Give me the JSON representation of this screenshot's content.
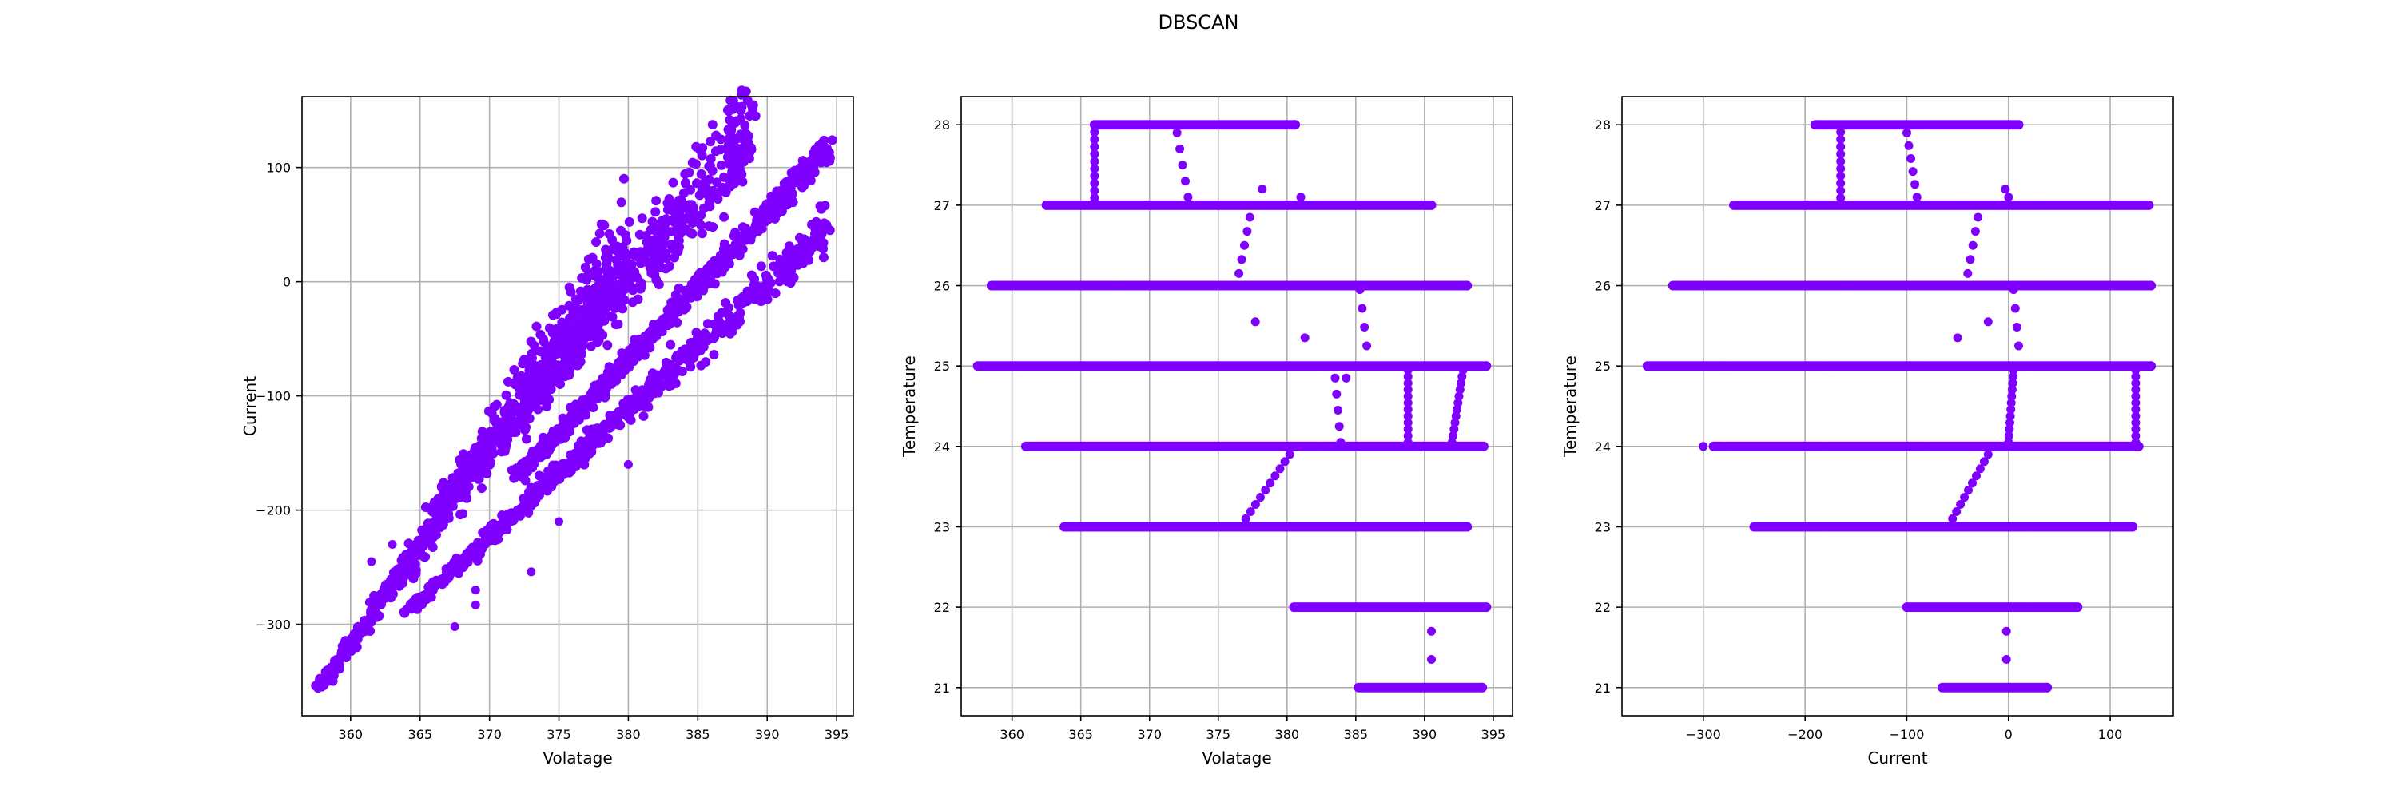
{
  "title": "DBSCAN",
  "marker_color": "#7f00ff",
  "charts": [
    {
      "type": "scatter",
      "xlabel": "Volatage",
      "ylabel": "Current",
      "xlim": [
        356.5,
        396.2
      ],
      "ylim": [
        -380,
        162
      ],
      "xticks": [
        360,
        365,
        370,
        375,
        380,
        385,
        390,
        395
      ],
      "yticks": [
        -300,
        -200,
        -100,
        0,
        100
      ],
      "grid": true,
      "bands": [
        {
          "x0": 357.8,
          "x1": 380.0,
          "y0": -355,
          "y1": 30,
          "w0": 6,
          "w1": 140
        },
        {
          "x0": 366.0,
          "x1": 389.0,
          "y0": -200,
          "y1": 138,
          "w0": 30,
          "w1": 140
        },
        {
          "x0": 372.0,
          "x1": 394.5,
          "y0": -170,
          "y1": 118,
          "w0": 20,
          "w1": 35
        },
        {
          "x0": 364.0,
          "x1": 394.5,
          "y0": -290,
          "y1": 50,
          "w0": 12,
          "w1": 60
        }
      ],
      "extra_points": [
        [
          367.5,
          -302
        ],
        [
          369.0,
          -270
        ],
        [
          369.0,
          -283
        ],
        [
          373.0,
          -254
        ],
        [
          380.0,
          -160
        ],
        [
          375.0,
          -210
        ],
        [
          363.0,
          -230
        ],
        [
          361.5,
          -245
        ]
      ]
    },
    {
      "type": "scatter",
      "xlabel": "Volatage",
      "ylabel": "Temperature",
      "xlim": [
        356.3,
        396.4
      ],
      "ylim": [
        20.65,
        28.35
      ],
      "xticks": [
        360,
        365,
        370,
        375,
        380,
        385,
        390,
        395
      ],
      "yticks": [
        21,
        22,
        23,
        24,
        25,
        26,
        27,
        28
      ],
      "grid": true,
      "levels": [
        {
          "y": 28,
          "x0": 366.0,
          "x1": 380.6
        },
        {
          "y": 27,
          "x0": 362.5,
          "x1": 390.5
        },
        {
          "y": 26,
          "x0": 358.5,
          "x1": 393.1
        },
        {
          "y": 25,
          "x0": 357.5,
          "x1": 394.5
        },
        {
          "y": 24,
          "x0": 361.0,
          "x1": 394.3
        },
        {
          "y": 23,
          "x0": 363.8,
          "x1": 393.1
        },
        {
          "y": 22,
          "x0": 380.5,
          "x1": 394.5
        },
        {
          "y": 21,
          "x0": 385.2,
          "x1": 394.2
        }
      ],
      "transitions": [
        {
          "x0": 366.0,
          "y0": 28.0,
          "x1": 366.0,
          "y1": 27.0,
          "n": 12
        },
        {
          "x0": 372.0,
          "y0": 27.9,
          "x1": 372.8,
          "y1": 27.1,
          "n": 5
        },
        {
          "x0": 376.5,
          "y0": 26.15,
          "x1": 377.3,
          "y1": 26.85,
          "n": 5
        },
        {
          "x0": 377.0,
          "y0": 23.1,
          "x1": 380.2,
          "y1": 23.9,
          "n": 10
        },
        {
          "x0": 383.5,
          "y0": 24.85,
          "x1": 383.9,
          "y1": 24.05,
          "n": 5
        },
        {
          "x0": 385.3,
          "y0": 25.95,
          "x1": 385.8,
          "y1": 25.25,
          "n": 4
        },
        {
          "x0": 388.8,
          "y0": 24.05,
          "x1": 388.8,
          "y1": 24.95,
          "n": 12
        },
        {
          "x0": 392.8,
          "y0": 24.95,
          "x1": 392.0,
          "y1": 24.05,
          "n": 12
        }
      ],
      "extra_points": [
        [
          378.2,
          27.2
        ],
        [
          381.0,
          27.1
        ],
        [
          377.7,
          25.55
        ],
        [
          381.3,
          25.35
        ],
        [
          390.5,
          21.7
        ],
        [
          390.5,
          21.35
        ],
        [
          384.3,
          24.85
        ]
      ]
    },
    {
      "type": "scatter",
      "xlabel": "Current",
      "ylabel": "Temperature",
      "xlim": [
        -380,
        162
      ],
      "ylim": [
        20.65,
        28.35
      ],
      "xticks": [
        -300,
        -200,
        -100,
        0,
        100
      ],
      "yticks": [
        21,
        22,
        23,
        24,
        25,
        26,
        27,
        28
      ],
      "grid": true,
      "levels": [
        {
          "y": 28,
          "x0": -190,
          "x1": 10
        },
        {
          "y": 27,
          "x0": -270,
          "x1": 138
        },
        {
          "y": 26,
          "x0": -330,
          "x1": 140
        },
        {
          "y": 25,
          "x0": -355,
          "x1": 140
        },
        {
          "y": 24,
          "x0": -290,
          "x1": 128
        },
        {
          "y": 23,
          "x0": -250,
          "x1": 122
        },
        {
          "y": 22,
          "x0": -100,
          "x1": 68
        },
        {
          "y": 21,
          "x0": -65,
          "x1": 38
        }
      ],
      "transitions": [
        {
          "x0": -165,
          "y0": 28.0,
          "x1": -165,
          "y1": 27.0,
          "n": 12
        },
        {
          "x0": -100,
          "y0": 27.9,
          "x1": -90,
          "y1": 27.1,
          "n": 6
        },
        {
          "x0": -40,
          "y0": 26.15,
          "x1": -30,
          "y1": 26.85,
          "n": 5
        },
        {
          "x0": -55,
          "y0": 23.1,
          "x1": -20,
          "y1": 23.9,
          "n": 10
        },
        {
          "x0": 5,
          "y0": 25.95,
          "x1": 10,
          "y1": 25.25,
          "n": 4
        },
        {
          "x0": 5,
          "y0": 24.95,
          "x1": 0,
          "y1": 24.05,
          "n": 12
        },
        {
          "x0": 125,
          "y0": 24.05,
          "x1": 125,
          "y1": 24.95,
          "n": 12
        }
      ],
      "extra_points": [
        [
          -3,
          27.2
        ],
        [
          0,
          27.1
        ],
        [
          -50,
          25.35
        ],
        [
          -20,
          25.55
        ],
        [
          -2,
          21.7
        ],
        [
          -2,
          21.35
        ],
        [
          -300,
          24.0
        ]
      ]
    }
  ]
}
